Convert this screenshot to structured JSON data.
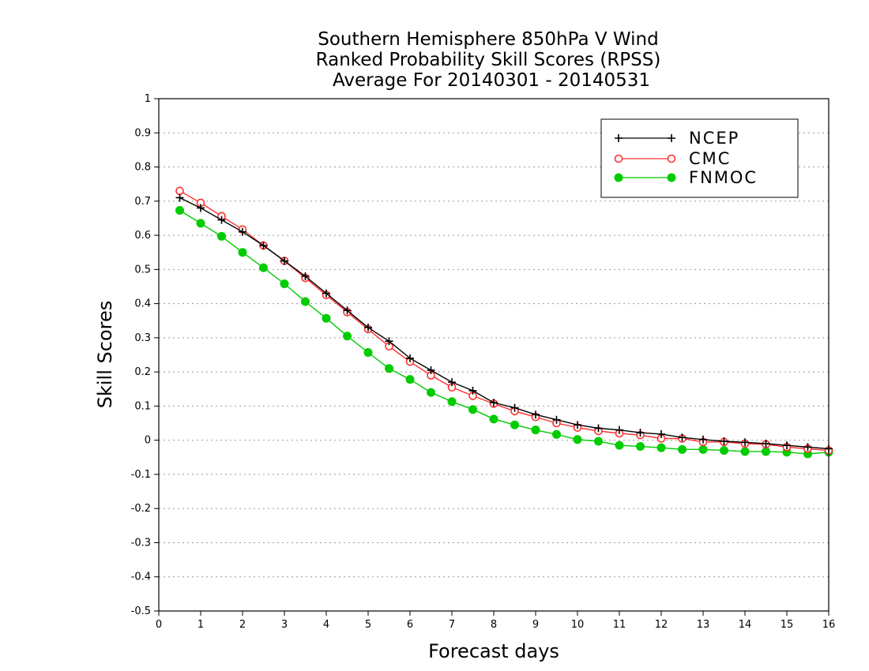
{
  "chart_data": {
    "type": "line",
    "title_lines": [
      "Southern Hemisphere 850hPa V Wind",
      "Ranked Probability Skill Scores (RPSS)",
      "Average For 20140301 - 20140531"
    ],
    "xlabel": "Forecast days",
    "ylabel": "Skill Scores",
    "xlim": [
      0,
      16
    ],
    "ylim": [
      -0.5,
      1
    ],
    "x_ticks": [
      "0",
      "1",
      "2",
      "3",
      "4",
      "5",
      "6",
      "7",
      "8",
      "9",
      "10",
      "11",
      "12",
      "13",
      "14",
      "15",
      "16"
    ],
    "y_ticks": [
      "1",
      "0.9",
      "0.8",
      "0.7",
      "0.6",
      "0.5",
      "0.4",
      "0.3",
      "0.2",
      "0.1",
      "0",
      "-0.1",
      "-0.2",
      "-0.3",
      "-0.4",
      "-0.5"
    ],
    "grid": true,
    "legend_position": "top-right",
    "x": [
      0.5,
      1,
      1.5,
      2,
      2.5,
      3,
      3.5,
      4,
      4.5,
      5,
      5.5,
      6,
      6.5,
      7,
      7.5,
      8,
      8.5,
      9,
      9.5,
      10,
      10.5,
      11,
      11.5,
      12,
      12.5,
      13,
      13.5,
      14,
      14.5,
      15,
      15.5,
      16
    ],
    "series": [
      {
        "name": "NCEP",
        "color": "#000000",
        "marker": "plus",
        "values": [
          0.71,
          0.68,
          0.645,
          0.61,
          0.57,
          0.525,
          0.48,
          0.43,
          0.38,
          0.33,
          0.29,
          0.24,
          0.205,
          0.17,
          0.145,
          0.11,
          0.095,
          0.075,
          0.06,
          0.045,
          0.035,
          0.03,
          0.022,
          0.018,
          0.008,
          0.002,
          -0.003,
          -0.006,
          -0.01,
          -0.015,
          -0.02,
          -0.025
        ]
      },
      {
        "name": "CMC",
        "color": "#ff3030",
        "marker": "open-circle",
        "values": [
          0.73,
          0.695,
          0.656,
          0.617,
          0.57,
          0.525,
          0.475,
          0.425,
          0.375,
          0.325,
          0.275,
          0.23,
          0.19,
          0.155,
          0.13,
          0.107,
          0.085,
          0.068,
          0.05,
          0.037,
          0.027,
          0.02,
          0.015,
          0.005,
          0.005,
          -0.005,
          -0.005,
          -0.01,
          -0.012,
          -0.02,
          -0.025,
          -0.03
        ]
      },
      {
        "name": "FNMOC",
        "color": "#00cc00",
        "marker": "filled-circle",
        "values": [
          0.673,
          0.635,
          0.597,
          0.55,
          0.505,
          0.458,
          0.406,
          0.357,
          0.305,
          0.257,
          0.21,
          0.178,
          0.14,
          0.113,
          0.09,
          0.062,
          0.045,
          0.03,
          0.017,
          0.002,
          -0.003,
          -0.015,
          -0.018,
          -0.022,
          -0.027,
          -0.027,
          -0.03,
          -0.033,
          -0.033,
          -0.035,
          -0.04,
          -0.035
        ]
      }
    ]
  }
}
